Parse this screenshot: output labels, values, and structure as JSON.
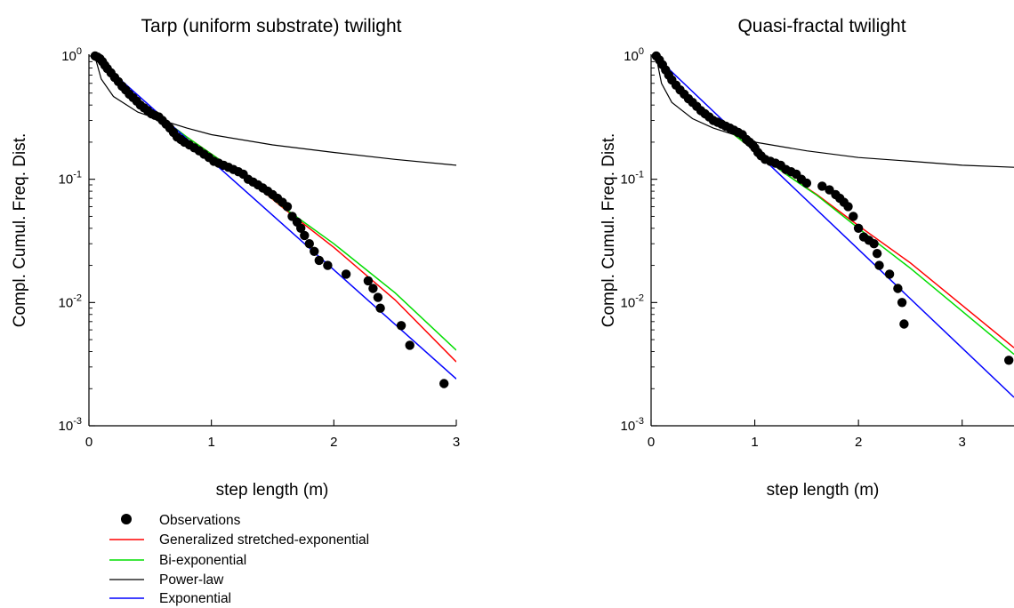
{
  "chart_data": [
    {
      "type": "scatter",
      "title": "Tarp (uniform substrate) twilight",
      "xlabel": "step length (m)",
      "ylabel": "Compl. Cumul. Freq. Dist.",
      "xlim": [
        0,
        3
      ],
      "ylim": [
        0.001,
        1
      ],
      "yscale": "log",
      "xticks": [
        0,
        1,
        2,
        3
      ],
      "xtick_labels": [
        "0",
        "1",
        "2",
        "3"
      ],
      "yticks": [
        1,
        0.1,
        0.01,
        0.001
      ],
      "ytick_labels": [
        {
          "base": "10",
          "exp": "0"
        },
        {
          "base": "10",
          "exp": "-1"
        },
        {
          "base": "10",
          "exp": "-2"
        },
        {
          "base": "10",
          "exp": "-3"
        }
      ],
      "grid": false,
      "observations": {
        "x": [
          0.05,
          0.07,
          0.09,
          0.11,
          0.13,
          0.15,
          0.18,
          0.21,
          0.24,
          0.27,
          0.3,
          0.33,
          0.36,
          0.39,
          0.42,
          0.45,
          0.48,
          0.51,
          0.54,
          0.57,
          0.6,
          0.63,
          0.66,
          0.69,
          0.72,
          0.75,
          0.78,
          0.82,
          0.86,
          0.9,
          0.94,
          0.98,
          1.02,
          1.06,
          1.1,
          1.14,
          1.18,
          1.22,
          1.26,
          1.3,
          1.34,
          1.38,
          1.42,
          1.46,
          1.5,
          1.54,
          1.58,
          1.62,
          1.66,
          1.7,
          1.73,
          1.76,
          1.8,
          1.84,
          1.88,
          1.95,
          2.1,
          2.28,
          2.32,
          2.36,
          2.38,
          2.55,
          2.62,
          2.9
        ],
        "y": [
          1.0,
          0.98,
          0.95,
          0.9,
          0.84,
          0.79,
          0.73,
          0.67,
          0.62,
          0.57,
          0.53,
          0.49,
          0.46,
          0.43,
          0.4,
          0.38,
          0.36,
          0.34,
          0.33,
          0.32,
          0.3,
          0.28,
          0.26,
          0.24,
          0.22,
          0.21,
          0.2,
          0.19,
          0.18,
          0.17,
          0.16,
          0.15,
          0.14,
          0.135,
          0.13,
          0.125,
          0.12,
          0.115,
          0.11,
          0.1,
          0.095,
          0.09,
          0.085,
          0.08,
          0.075,
          0.07,
          0.065,
          0.06,
          0.05,
          0.045,
          0.04,
          0.035,
          0.03,
          0.026,
          0.022,
          0.02,
          0.017,
          0.015,
          0.013,
          0.011,
          0.009,
          0.0065,
          0.0045,
          0.0022
        ]
      },
      "fits": [
        {
          "x": [
            0.05,
            0.2,
            0.4,
            0.6,
            0.8,
            1.0,
            1.3,
            1.6,
            2.0,
            2.5,
            3.0
          ],
          "y": [
            0.98,
            0.65,
            0.44,
            0.31,
            0.22,
            0.16,
            0.1,
            0.057,
            0.028,
            0.0105,
            0.0033
          ]
        },
        {
          "x": [
            0.05,
            0.2,
            0.4,
            0.6,
            0.8,
            1.0,
            1.3,
            1.6,
            2.0,
            2.5,
            3.0
          ],
          "y": [
            0.98,
            0.66,
            0.44,
            0.31,
            0.22,
            0.16,
            0.1,
            0.058,
            0.03,
            0.012,
            0.0041
          ]
        },
        {
          "x": [
            0.05,
            0.1,
            0.2,
            0.4,
            0.6,
            0.8,
            1.0,
            1.5,
            2.0,
            2.5,
            3.0
          ],
          "y": [
            0.98,
            0.65,
            0.47,
            0.35,
            0.3,
            0.26,
            0.23,
            0.19,
            0.165,
            0.145,
            0.13
          ]
        },
        {
          "x": [
            0.05,
            3.0
          ],
          "y": [
            0.98,
            0.0024
          ]
        }
      ]
    },
    {
      "type": "scatter",
      "title": "Quasi-fractal twilight",
      "xlabel": "step length (m)",
      "ylabel": "Compl. Cumul. Freq. Dist.",
      "xlim": [
        0,
        3.5
      ],
      "ylim": [
        0.001,
        1
      ],
      "yscale": "log",
      "xticks": [
        0,
        1,
        2,
        3
      ],
      "xtick_labels": [
        "0",
        "1",
        "2",
        "3"
      ],
      "yticks": [
        1,
        0.1,
        0.01,
        0.001
      ],
      "ytick_labels": [
        {
          "base": "10",
          "exp": "0"
        },
        {
          "base": "10",
          "exp": "-1"
        },
        {
          "base": "10",
          "exp": "-2"
        },
        {
          "base": "10",
          "exp": "-3"
        }
      ],
      "grid": false,
      "observations": {
        "x": [
          0.05,
          0.08,
          0.11,
          0.14,
          0.17,
          0.2,
          0.24,
          0.28,
          0.32,
          0.36,
          0.4,
          0.44,
          0.48,
          0.52,
          0.56,
          0.6,
          0.64,
          0.68,
          0.72,
          0.76,
          0.8,
          0.84,
          0.88,
          0.92,
          0.95,
          0.98,
          1.0,
          1.03,
          1.06,
          1.1,
          1.15,
          1.2,
          1.25,
          1.3,
          1.35,
          1.4,
          1.45,
          1.5,
          1.65,
          1.72,
          1.78,
          1.82,
          1.86,
          1.9,
          1.95,
          2.0,
          2.05,
          2.1,
          2.15,
          2.18,
          2.2,
          2.3,
          2.38,
          2.42,
          2.44,
          3.45
        ],
        "y": [
          1.0,
          0.93,
          0.85,
          0.77,
          0.7,
          0.64,
          0.58,
          0.53,
          0.49,
          0.45,
          0.42,
          0.39,
          0.36,
          0.34,
          0.32,
          0.3,
          0.29,
          0.28,
          0.27,
          0.26,
          0.25,
          0.24,
          0.23,
          0.21,
          0.2,
          0.19,
          0.18,
          0.165,
          0.155,
          0.145,
          0.14,
          0.135,
          0.13,
          0.12,
          0.115,
          0.11,
          0.1,
          0.093,
          0.088,
          0.082,
          0.075,
          0.07,
          0.065,
          0.06,
          0.05,
          0.04,
          0.034,
          0.032,
          0.03,
          0.025,
          0.02,
          0.017,
          0.013,
          0.01,
          0.0067,
          0.0034
        ]
      },
      "fits": [
        {
          "x": [
            0.05,
            0.2,
            0.4,
            0.6,
            0.8,
            1.0,
            1.3,
            1.6,
            2.0,
            2.5,
            3.0,
            3.5
          ],
          "y": [
            0.98,
            0.62,
            0.43,
            0.31,
            0.23,
            0.17,
            0.11,
            0.075,
            0.042,
            0.021,
            0.0095,
            0.0043
          ]
        },
        {
          "x": [
            0.05,
            0.2,
            0.4,
            0.6,
            0.8,
            1.0,
            1.3,
            1.6,
            2.0,
            2.5,
            3.0,
            3.5
          ],
          "y": [
            0.98,
            0.62,
            0.43,
            0.31,
            0.23,
            0.17,
            0.11,
            0.074,
            0.04,
            0.019,
            0.0085,
            0.0038
          ]
        },
        {
          "x": [
            0.05,
            0.1,
            0.2,
            0.4,
            0.6,
            0.8,
            1.0,
            1.5,
            2.0,
            2.5,
            3.0,
            3.5
          ],
          "y": [
            0.98,
            0.6,
            0.42,
            0.31,
            0.26,
            0.23,
            0.2,
            0.17,
            0.15,
            0.14,
            0.13,
            0.125
          ]
        },
        {
          "x": [
            0.05,
            3.5
          ],
          "y": [
            0.98,
            0.0017
          ]
        }
      ]
    }
  ],
  "legend": {
    "placement": "bottom-left",
    "items": [
      {
        "label": "Observations",
        "kind": "marker",
        "color": "#000000"
      },
      {
        "label": "Generalized stretched-exponential",
        "kind": "line",
        "color": "#ff0000"
      },
      {
        "label": "Bi-exponential",
        "kind": "line",
        "color": "#00dd00"
      },
      {
        "label": "Power-law",
        "kind": "line",
        "color": "#000000"
      },
      {
        "label": "Exponential",
        "kind": "line",
        "color": "#0000ff"
      }
    ]
  }
}
